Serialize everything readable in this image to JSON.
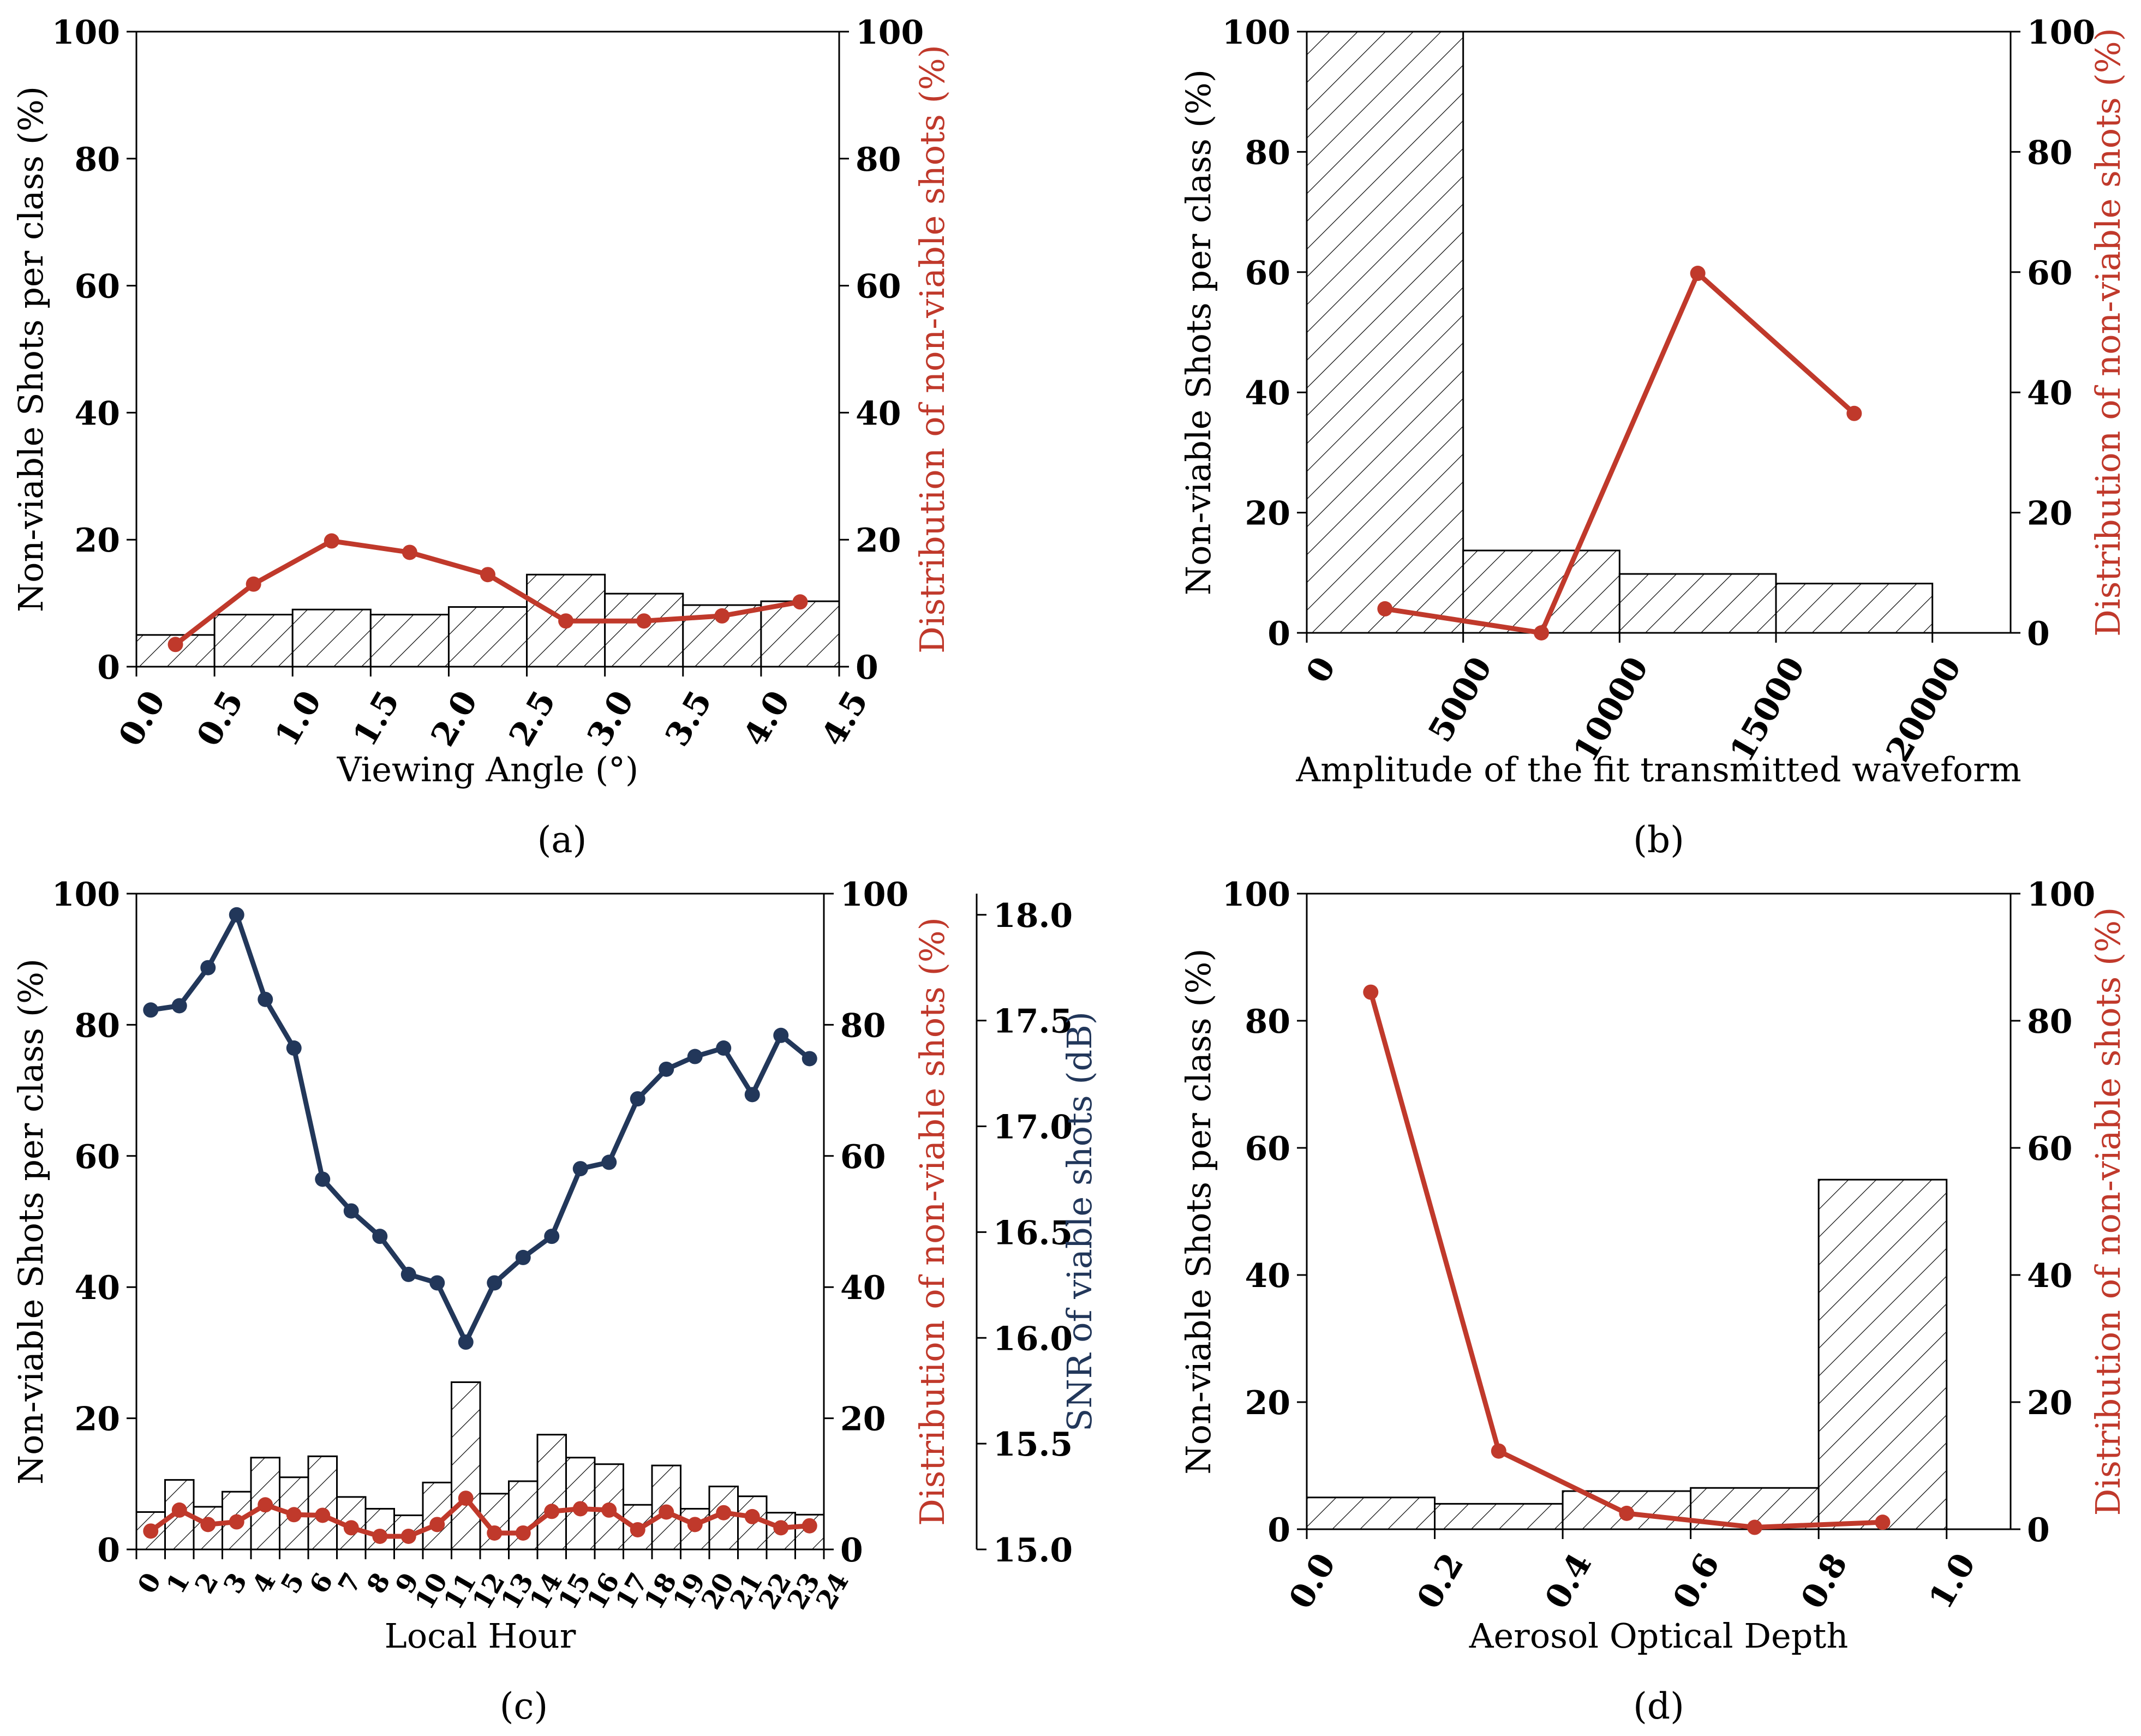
{
  "colors": {
    "red": "#C0392B",
    "navy": "#22375A",
    "black": "#000000"
  },
  "chart_data": [
    {
      "id": "a",
      "type": "bar",
      "caption": "(a)",
      "xlabel": "Viewing Angle (°)",
      "ylabel": "Non-viable Shots per class (%)",
      "y2label": "Distribution of non-viable shots (%)",
      "xlim": [
        0,
        4.5
      ],
      "ylim": [
        0,
        100
      ],
      "y2lim": [
        0,
        100
      ],
      "x_ticks": [
        0.0,
        0.5,
        1.0,
        1.5,
        2.0,
        2.5,
        3.0,
        3.5,
        4.0,
        4.5
      ],
      "x_tick_labels": [
        "0.0",
        "0.5",
        "1.0",
        "1.5",
        "2.0",
        "2.5",
        "3.0",
        "3.5",
        "4.0",
        "4.5"
      ],
      "y_ticks": [
        0,
        20,
        40,
        60,
        80,
        100
      ],
      "y_tick_labels": [
        "0",
        "20",
        "40",
        "60",
        "80",
        "100"
      ],
      "y2_ticks": [
        0,
        20,
        40,
        60,
        80,
        100
      ],
      "y2_tick_labels": [
        "0",
        "20",
        "40",
        "60",
        "80",
        "100"
      ],
      "bar_edges": [
        0,
        0.5,
        1.0,
        1.5,
        2.0,
        2.5,
        3.0,
        3.5,
        4.0,
        4.5
      ],
      "bar_values": [
        5.0,
        8.2,
        9.0,
        8.2,
        9.4,
        14.5,
        11.5,
        9.7,
        10.3
      ],
      "line_x": [
        0.25,
        0.75,
        1.25,
        1.75,
        2.25,
        2.75,
        3.25,
        3.75,
        4.25
      ],
      "line_y": [
        3.5,
        13.0,
        19.8,
        18.0,
        14.5,
        7.2,
        7.2,
        8.0,
        10.2
      ],
      "x_tick_rotation": -60
    },
    {
      "id": "b",
      "type": "bar",
      "caption": "(b)",
      "xlabel": "Amplitude of the fit transmitted waveform",
      "ylabel": "Non-viable Shots per class (%)",
      "y2label": "Distribution of non-viable shots (%)",
      "xlim": [
        0,
        22500
      ],
      "ylim": [
        0,
        100
      ],
      "y2lim": [
        0,
        100
      ],
      "x_ticks": [
        0,
        5000,
        10000,
        15000,
        20000
      ],
      "x_tick_labels": [
        "0",
        "5000",
        "10000",
        "15000",
        "20000"
      ],
      "y_ticks": [
        0,
        20,
        40,
        60,
        80,
        100
      ],
      "y_tick_labels": [
        "0",
        "20",
        "40",
        "60",
        "80",
        "100"
      ],
      "y2_ticks": [
        0,
        20,
        40,
        60,
        80,
        100
      ],
      "y2_tick_labels": [
        "0",
        "20",
        "40",
        "60",
        "80",
        "100"
      ],
      "bar_edges": [
        0,
        5000,
        10000,
        15000,
        20000
      ],
      "bar_values": [
        100,
        13.7,
        9.8,
        8.2
      ],
      "line_x": [
        2500,
        7500,
        12500,
        17500
      ],
      "line_y": [
        4.0,
        0.0,
        59.8,
        36.5
      ],
      "x_tick_rotation": -60
    },
    {
      "id": "c",
      "type": "bar",
      "caption": "(c)",
      "xlabel": "Local Hour",
      "ylabel": "Non-viable Shots per class (%)",
      "y2label": "Distribution of non-viable shots (%)",
      "y3label": "SNR of viable shots (dB)",
      "xlim": [
        0,
        24
      ],
      "ylim": [
        0,
        100
      ],
      "y2lim": [
        0,
        100
      ],
      "y3lim": [
        15.0,
        18.1
      ],
      "x_ticks": [
        0,
        1,
        2,
        3,
        4,
        5,
        6,
        7,
        8,
        9,
        10,
        11,
        12,
        13,
        14,
        15,
        16,
        17,
        18,
        19,
        20,
        21,
        22,
        23,
        24
      ],
      "x_tick_labels": [
        "0",
        "1",
        "2",
        "3",
        "4",
        "5",
        "6",
        "7",
        "8",
        "9",
        "10",
        "11",
        "12",
        "13",
        "14",
        "15",
        "16",
        "17",
        "18",
        "19",
        "20",
        "21",
        "22",
        "23",
        "24"
      ],
      "y_ticks": [
        0,
        20,
        40,
        60,
        80,
        100
      ],
      "y_tick_labels": [
        "0",
        "20",
        "40",
        "60",
        "80",
        "100"
      ],
      "y2_ticks": [
        0,
        20,
        40,
        60,
        80,
        100
      ],
      "y2_tick_labels": [
        "0",
        "20",
        "40",
        "60",
        "80",
        "100"
      ],
      "y3_ticks": [
        15.0,
        15.5,
        16.0,
        16.5,
        17.0,
        17.5,
        18.0
      ],
      "y3_tick_labels": [
        "15.0",
        "15.5",
        "16.0",
        "16.5",
        "17.0",
        "17.5",
        "18.0"
      ],
      "bar_edges": [
        0,
        1,
        2,
        3,
        4,
        5,
        6,
        7,
        8,
        9,
        10,
        11,
        12,
        13,
        14,
        15,
        16,
        17,
        18,
        19,
        20,
        21,
        22,
        23,
        24
      ],
      "bar_values": [
        5.7,
        10.6,
        6.5,
        8.8,
        14.0,
        11.0,
        14.2,
        8.0,
        6.2,
        5.2,
        10.2,
        25.5,
        8.5,
        10.4,
        17.5,
        14.0,
        13.0,
        6.8,
        12.8,
        6.2,
        9.6,
        8.1,
        5.6,
        5.3
      ],
      "line_x": [
        0.5,
        1.5,
        2.5,
        3.5,
        4.5,
        5.5,
        6.5,
        7.5,
        8.5,
        9.5,
        10.5,
        11.5,
        12.5,
        13.5,
        14.5,
        15.5,
        16.5,
        17.5,
        18.5,
        19.5,
        20.5,
        21.5,
        22.5,
        23.5
      ],
      "line_y": [
        2.8,
        6.0,
        3.8,
        4.2,
        6.8,
        5.3,
        5.2,
        3.3,
        2.0,
        2.0,
        3.8,
        7.8,
        2.5,
        2.5,
        5.8,
        6.2,
        6.0,
        3.0,
        5.7,
        3.8,
        5.6,
        5.0,
        3.3,
        3.6
      ],
      "snr_x": [
        0.5,
        1.5,
        2.5,
        3.5,
        4.5,
        5.5,
        6.5,
        7.5,
        8.5,
        9.5,
        10.5,
        11.5,
        12.5,
        13.5,
        14.5,
        15.5,
        16.5,
        17.5,
        18.5,
        19.5,
        20.5,
        21.5,
        22.5,
        23.5
      ],
      "snr_y": [
        17.55,
        17.57,
        17.75,
        18.0,
        17.6,
        17.37,
        16.75,
        16.6,
        16.48,
        16.3,
        16.26,
        15.98,
        16.26,
        16.38,
        16.48,
        16.8,
        16.83,
        17.13,
        17.27,
        17.33,
        17.37,
        17.15,
        17.43,
        17.32
      ],
      "x_tick_rotation": -60
    },
    {
      "id": "d",
      "type": "bar",
      "caption": "(d)",
      "xlabel": "Aerosol Optical Depth",
      "ylabel": "Non-viable Shots per class (%)",
      "y2label": "Distribution of non-viable shots (%)",
      "xlim": [
        0,
        1.1
      ],
      "ylim": [
        0,
        100
      ],
      "y2lim": [
        0,
        100
      ],
      "x_ticks": [
        0.0,
        0.2,
        0.4,
        0.6,
        0.8,
        1.0
      ],
      "x_tick_labels": [
        "0.0",
        "0.2",
        "0.4",
        "0.6",
        "0.8",
        "1.0"
      ],
      "y_ticks": [
        0,
        20,
        40,
        60,
        80,
        100
      ],
      "y_tick_labels": [
        "0",
        "20",
        "40",
        "60",
        "80",
        "100"
      ],
      "y2_ticks": [
        0,
        20,
        40,
        60,
        80,
        100
      ],
      "y2_tick_labels": [
        "0",
        "20",
        "40",
        "60",
        "80",
        "100"
      ],
      "bar_edges": [
        0,
        0.2,
        0.4,
        0.6,
        0.8,
        1.0
      ],
      "bar_values": [
        5.0,
        4.0,
        6.0,
        6.5,
        55.0
      ],
      "line_x": [
        0.1,
        0.3,
        0.5,
        0.7,
        0.9
      ],
      "line_y": [
        84.5,
        12.3,
        2.5,
        0.3,
        1.1
      ],
      "x_tick_rotation": -60
    }
  ]
}
